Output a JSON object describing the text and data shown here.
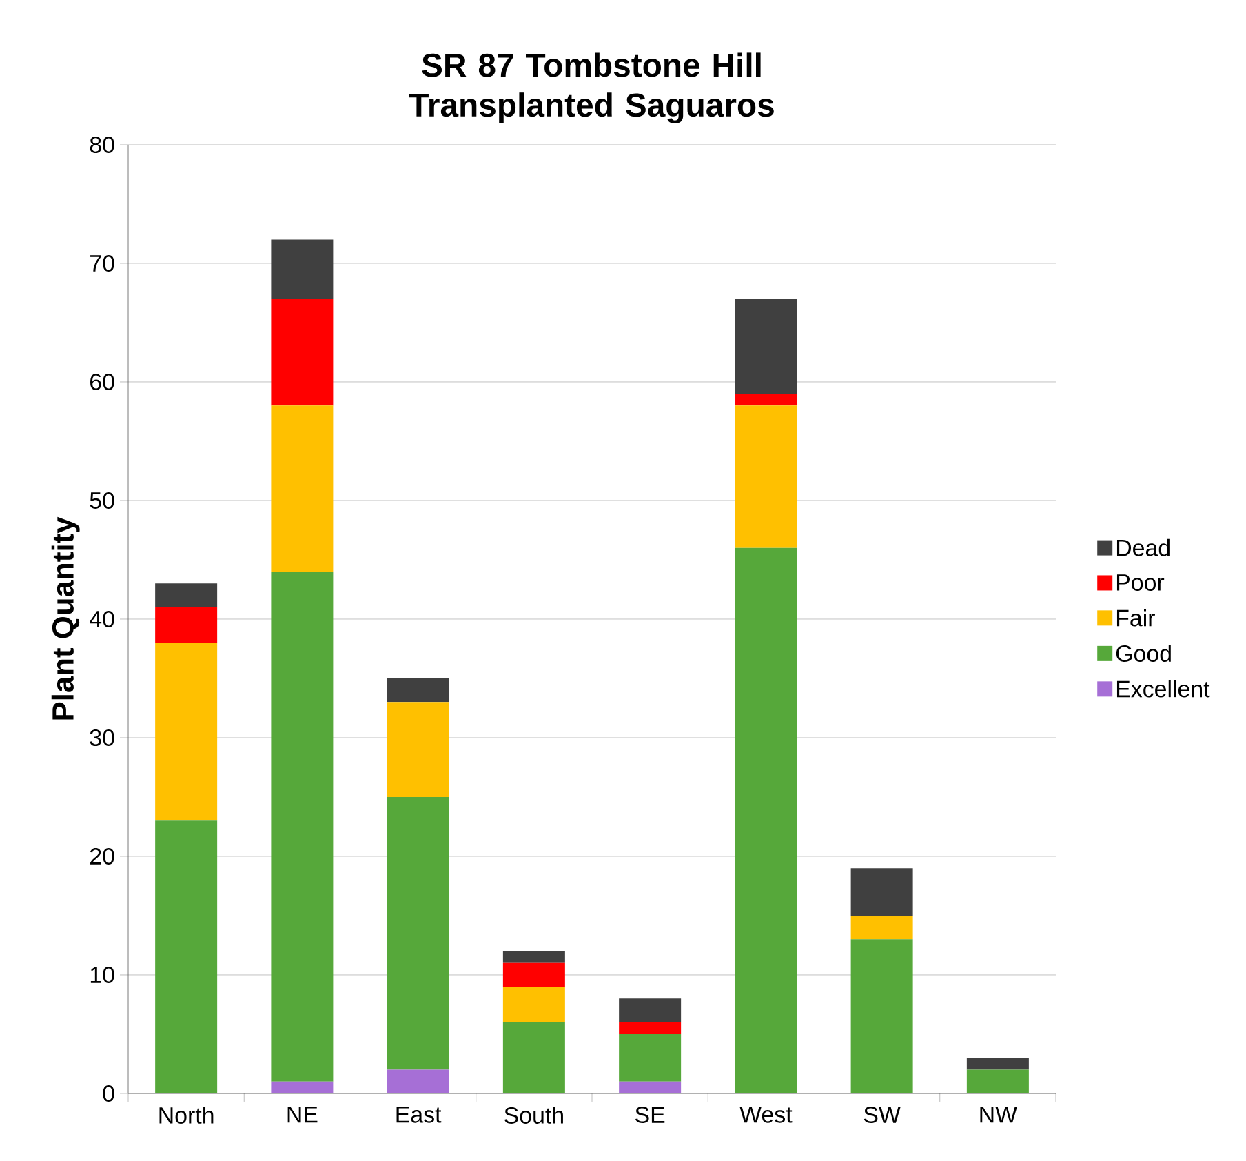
{
  "chart_data": {
    "type": "bar",
    "stacked": true,
    "title": "SR 87 Tombstone Hill Transplanted Saguaros",
    "ylabel": "Plant Quantity",
    "categories": [
      "North",
      "NE",
      "East",
      "South",
      "SE",
      "West",
      "SW",
      "NW"
    ],
    "series": [
      {
        "name": "Excellent",
        "color": "#a66fd6",
        "values": [
          0,
          1,
          2,
          0,
          1,
          0,
          0,
          0
        ]
      },
      {
        "name": "Good",
        "color": "#56a83a",
        "values": [
          23,
          43,
          23,
          6,
          4,
          46,
          13,
          2
        ]
      },
      {
        "name": "Fair",
        "color": "#ffc000",
        "values": [
          15,
          14,
          8,
          3,
          0,
          12,
          2,
          0
        ]
      },
      {
        "name": "Poor",
        "color": "#ff0000",
        "values": [
          3,
          9,
          0,
          2,
          1,
          1,
          0,
          0
        ]
      },
      {
        "name": "Dead",
        "color": "#404040",
        "values": [
          2,
          5,
          2,
          1,
          2,
          8,
          4,
          1
        ]
      }
    ],
    "ylim": [
      0,
      80
    ],
    "yticks": [
      0,
      10,
      20,
      30,
      40,
      50,
      60,
      70,
      80
    ],
    "grid": "y",
    "legend": "right"
  }
}
